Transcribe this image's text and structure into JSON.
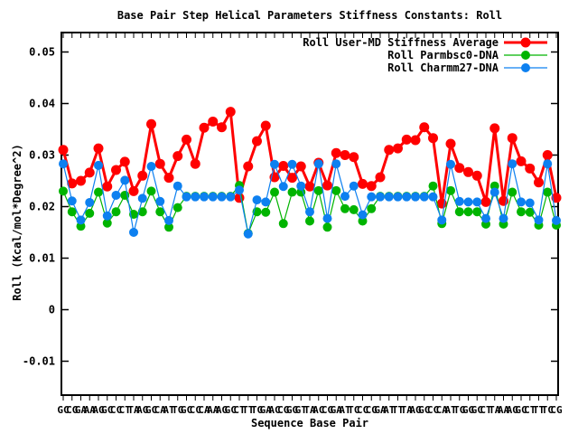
{
  "title": "Base Pair Step Helical Parameters Stiffness Constants: Roll",
  "chart_data": {
    "type": "line",
    "title": "Base Pair Step Helical Parameters Stiffness Constants: Roll",
    "xlabel": "Sequence Base Pair",
    "ylabel": "Roll (Kcal/mol*Degree^2)",
    "grid": false,
    "legend_position": "top-right-inside",
    "ylim": [
      -0.0166,
      0.0538
    ],
    "yticks": [
      0.05,
      0.04,
      0.03,
      0.02,
      0.01,
      0,
      -0.01
    ],
    "ytick_labels": [
      "0.05",
      "0.04",
      "0.03",
      "0.02",
      "0.01",
      "0",
      "-0.01"
    ],
    "xtick_note": "57 two-letter base-pair-step tick labels overlap into illegible blobs; first letter G and final CG are visible",
    "x_categories": [
      "GC",
      "CG",
      "GA",
      "AA",
      "AG",
      "GC",
      "CC",
      "CT",
      "TA",
      "AG",
      "GC",
      "CA",
      "AT",
      "TG",
      "GC",
      "CC",
      "CA",
      "AA",
      "AG",
      "GC",
      "CT",
      "TT",
      "TG",
      "GA",
      "AC",
      "CG",
      "GG",
      "GT",
      "TA",
      "AC",
      "CG",
      "GA",
      "AT",
      "TC",
      "CC",
      "CG",
      "GA",
      "AT",
      "TT",
      "TA",
      "AG",
      "GC",
      "CC",
      "CA",
      "AT",
      "TG",
      "GG",
      "GC",
      "CT",
      "TA",
      "AA",
      "AG",
      "GC",
      "CT",
      "TT",
      "TC",
      "CG"
    ],
    "series": [
      {
        "name": "Roll User-MD Stiffness Average",
        "color": "#ff0000",
        "marker": "circle",
        "marker_radius": 5.5,
        "line_width": 3,
        "values": [
          0.031,
          0.0245,
          0.025,
          0.0266,
          0.0313,
          0.0239,
          0.0271,
          0.0287,
          0.023,
          0.026,
          0.036,
          0.0283,
          0.0256,
          0.0298,
          0.033,
          0.0283,
          0.0353,
          0.0365,
          0.0354,
          0.0384,
          0.0217,
          0.0278,
          0.0327,
          0.0357,
          0.0257,
          0.0279,
          0.0256,
          0.0278,
          0.0239,
          0.0285,
          0.0241,
          0.0304,
          0.03,
          0.0296,
          0.0244,
          0.024,
          0.0257,
          0.031,
          0.0313,
          0.033,
          0.0329,
          0.0354,
          0.0333,
          0.0206,
          0.0322,
          0.0275,
          0.0267,
          0.026,
          0.0209,
          0.0352,
          0.0211,
          0.0333,
          0.0288,
          0.0274,
          0.0247,
          0.03,
          0.0217
        ]
      },
      {
        "name": "Roll Parmbsc0-DNA",
        "color": "#00b400",
        "marker": "circle",
        "marker_radius": 5,
        "line_width": 1.2,
        "values": [
          0.023,
          0.019,
          0.0162,
          0.0187,
          0.0228,
          0.0168,
          0.019,
          0.0222,
          0.0185,
          0.019,
          0.023,
          0.019,
          0.016,
          0.0198,
          0.022,
          0.022,
          0.022,
          0.022,
          0.022,
          0.022,
          0.0241,
          0.0148,
          0.019,
          0.0189,
          0.0228,
          0.0167,
          0.0228,
          0.0228,
          0.0172,
          0.0231,
          0.016,
          0.0231,
          0.0196,
          0.0194,
          0.0172,
          0.0196,
          0.022,
          0.022,
          0.022,
          0.022,
          0.022,
          0.022,
          0.024,
          0.0167,
          0.0231,
          0.019,
          0.019,
          0.019,
          0.0166,
          0.024,
          0.0166,
          0.0228,
          0.019,
          0.0189,
          0.0164,
          0.0228,
          0.0164
        ]
      },
      {
        "name": "Roll Charmm27-DNA",
        "color": "#0d80f0",
        "marker": "circle",
        "marker_radius": 5,
        "line_width": 1.2,
        "values": [
          0.0283,
          0.0211,
          0.0174,
          0.0208,
          0.028,
          0.0182,
          0.0222,
          0.0251,
          0.015,
          0.0216,
          0.0278,
          0.021,
          0.0173,
          0.024,
          0.0219,
          0.0219,
          0.0219,
          0.0219,
          0.0219,
          0.0219,
          0.0232,
          0.0147,
          0.0213,
          0.0209,
          0.0282,
          0.0239,
          0.0282,
          0.024,
          0.019,
          0.0283,
          0.0177,
          0.0283,
          0.022,
          0.024,
          0.0184,
          0.0219,
          0.0219,
          0.0219,
          0.0219,
          0.0219,
          0.0219,
          0.0219,
          0.0219,
          0.0174,
          0.0282,
          0.021,
          0.0209,
          0.0209,
          0.0177,
          0.0228,
          0.0177,
          0.0283,
          0.0209,
          0.0207,
          0.0174,
          0.0283,
          0.0173
        ]
      }
    ]
  }
}
